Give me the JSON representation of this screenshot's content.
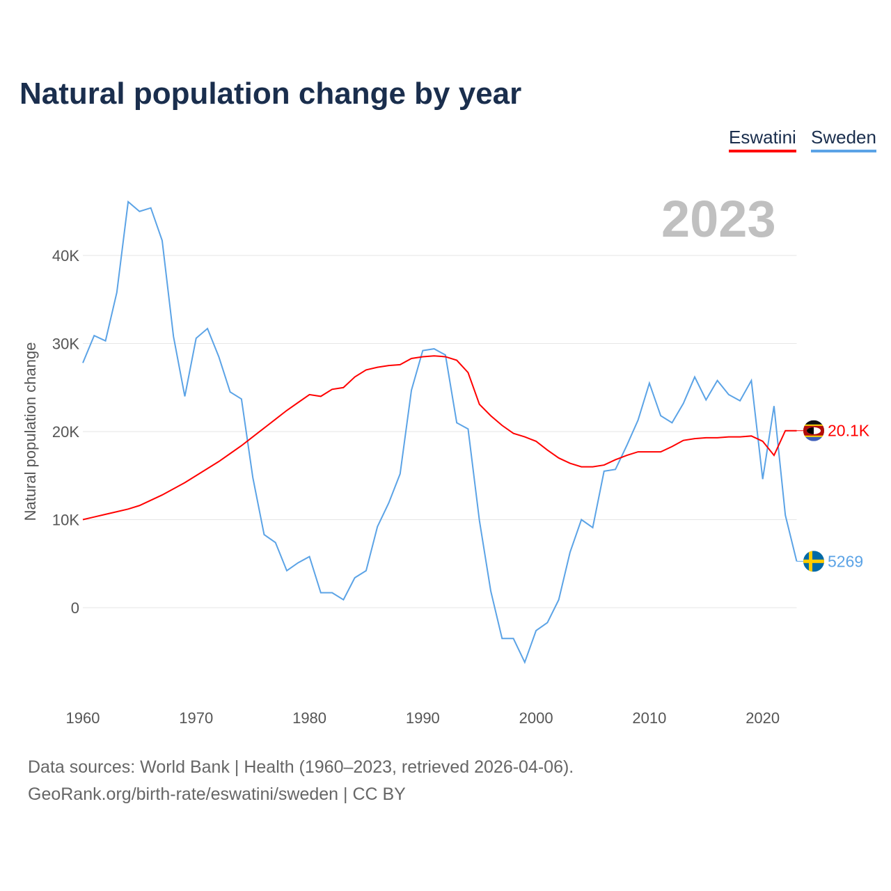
{
  "title": "Natural population change by year",
  "year_label": "2023",
  "footer": {
    "line1": "Data sources: World Bank | Health (1960–2023, retrieved 2026-04-06).",
    "line2": "GeoRank.org/birth-rate/eswatini/sweden | CC BY"
  },
  "chart_data": {
    "type": "line",
    "title": "Natural population change by year",
    "xlabel": "",
    "ylabel": "Natural population change",
    "xlim": [
      1960,
      2023
    ],
    "ylim": [
      -10000,
      50000
    ],
    "x_ticks": [
      1960,
      1970,
      1980,
      1990,
      2000,
      2010,
      2020
    ],
    "x_tick_labels": [
      "1960",
      "1970",
      "1980",
      "1990",
      "2000",
      "2010",
      "2020"
    ],
    "y_ticks": [
      0,
      10000,
      20000,
      30000,
      40000
    ],
    "y_tick_labels": [
      "0",
      "10K",
      "20K",
      "30K",
      "40K"
    ],
    "grid": true,
    "legend_position": "top-right",
    "x": [
      1960,
      1961,
      1962,
      1963,
      1964,
      1965,
      1966,
      1967,
      1968,
      1969,
      1970,
      1971,
      1972,
      1973,
      1974,
      1975,
      1976,
      1977,
      1978,
      1979,
      1980,
      1981,
      1982,
      1983,
      1984,
      1985,
      1986,
      1987,
      1988,
      1989,
      1990,
      1991,
      1992,
      1993,
      1994,
      1995,
      1996,
      1997,
      1998,
      1999,
      2000,
      2001,
      2002,
      2003,
      2004,
      2005,
      2006,
      2007,
      2008,
      2009,
      2010,
      2011,
      2012,
      2013,
      2014,
      2015,
      2016,
      2017,
      2018,
      2019,
      2020,
      2021,
      2022,
      2023
    ],
    "series": [
      {
        "name": "Eswatini",
        "color": "#ff0000",
        "end_label": "20.1K",
        "values": [
          10000,
          10300,
          10600,
          10900,
          11200,
          11600,
          12200,
          12800,
          13500,
          14200,
          15000,
          15800,
          16600,
          17500,
          18400,
          19400,
          20400,
          21400,
          22400,
          23300,
          24200,
          24000,
          24800,
          25000,
          26200,
          27000,
          27300,
          27500,
          27600,
          28300,
          28500,
          28600,
          28500,
          28100,
          26700,
          23100,
          21800,
          20700,
          19800,
          19400,
          18900,
          17900,
          17000,
          16400,
          16000,
          16000,
          16200,
          16800,
          17300,
          17700,
          17700,
          17700,
          18300,
          19000,
          19200,
          19300,
          19300,
          19400,
          19400,
          19500,
          18900,
          17300,
          20100,
          20100
        ]
      },
      {
        "name": "Sweden",
        "color": "#5ba3e6",
        "end_label": "5269",
        "values": [
          27800,
          30900,
          30300,
          35800,
          46100,
          45000,
          45400,
          41700,
          30800,
          24000,
          30600,
          31700,
          28500,
          24500,
          23700,
          14800,
          8300,
          7400,
          4200,
          5100,
          5800,
          1700,
          1700,
          900,
          3400,
          4200,
          9200,
          11900,
          15200,
          24700,
          29200,
          29400,
          28700,
          21000,
          20300,
          9900,
          1900,
          -3500,
          -3500,
          -6200,
          -2600,
          -1700,
          900,
          6300,
          10000,
          9100,
          15500,
          15700,
          18400,
          21300,
          25500,
          21800,
          21000,
          23200,
          26200,
          23600,
          25800,
          24200,
          23500,
          25800,
          14600,
          22900,
          10500,
          5269
        ]
      }
    ]
  }
}
